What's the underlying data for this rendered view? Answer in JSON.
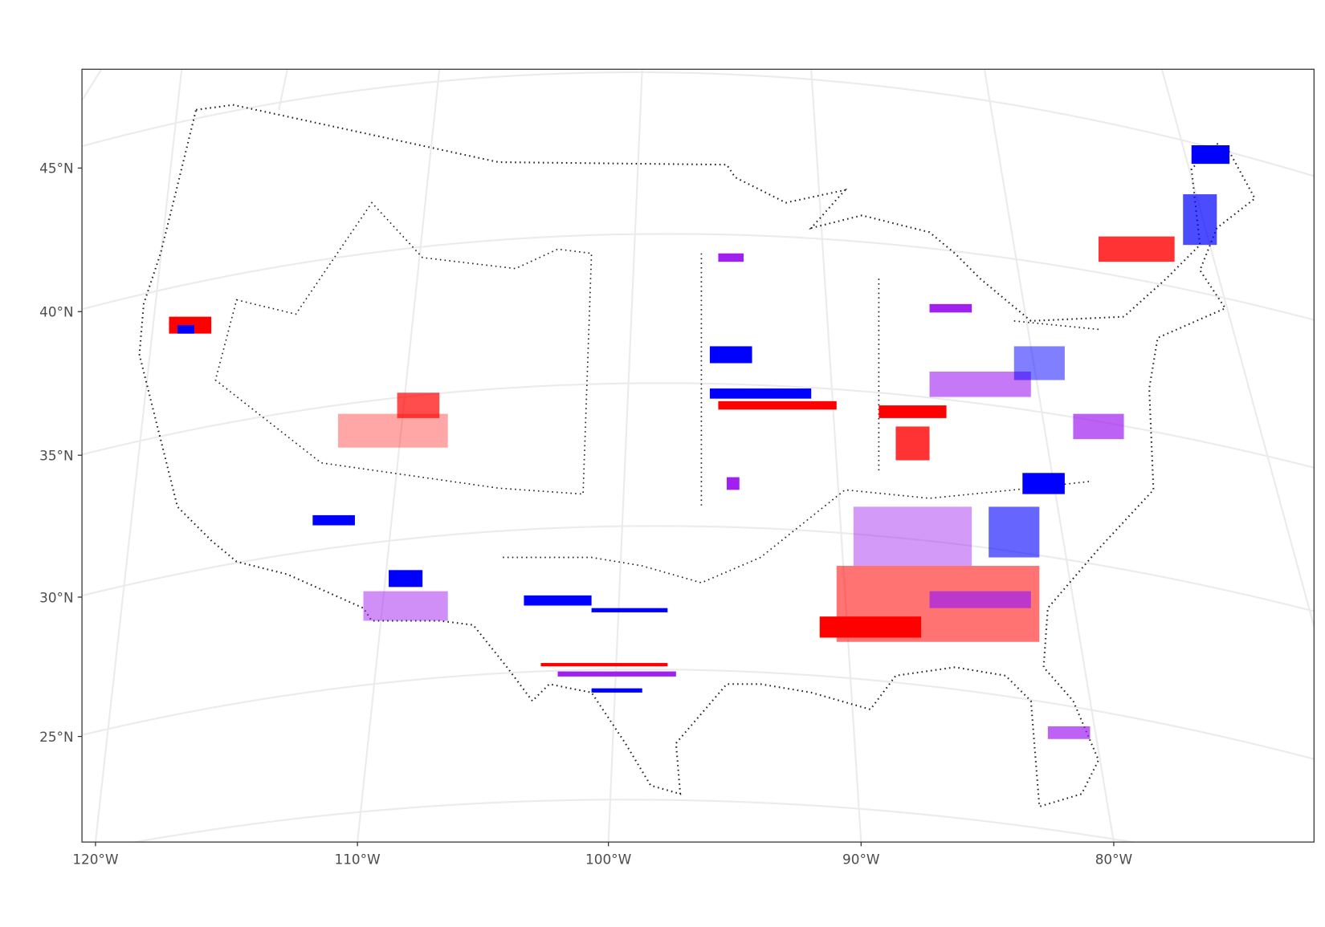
{
  "map": {
    "latitude_labels": [
      "45°N",
      "40°N",
      "35°N",
      "30°N",
      "25°N"
    ],
    "longitude_labels": [
      "120°W",
      "110°W",
      "100°W",
      "90°W",
      "80°W"
    ]
  }
}
